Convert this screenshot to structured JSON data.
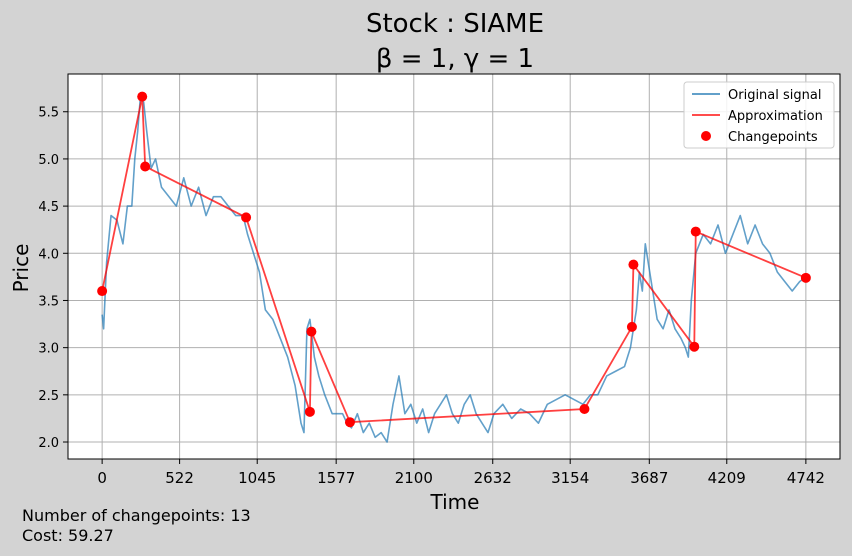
{
  "chart_data": {
    "type": "line",
    "title_line1": "Stock : SIAME",
    "title_line2": "β = 1, γ = 1",
    "xlabel": "Time",
    "ylabel": "Price",
    "xlim": [
      -230,
      4972
    ],
    "ylim": [
      1.82,
      5.9
    ],
    "xticks": [
      0,
      522,
      1045,
      1577,
      2100,
      2632,
      3154,
      3687,
      4209,
      4742
    ],
    "yticks": [
      2.0,
      2.5,
      3.0,
      3.5,
      4.0,
      4.5,
      5.0,
      5.5
    ],
    "ytick_labels": [
      "2.0",
      "2.5",
      "3.0",
      "3.5",
      "4.0",
      "4.5",
      "5.0",
      "5.5"
    ],
    "grid": true,
    "legend_position": "top-right",
    "colors": {
      "signal": "#1f77b4",
      "approximation": "#ff0000",
      "changepoints": "#ff0000"
    },
    "series": [
      {
        "name": "Original signal",
        "x": [
          0,
          10,
          30,
          60,
          100,
          140,
          170,
          200,
          220,
          240,
          260,
          280,
          300,
          330,
          360,
          400,
          450,
          500,
          550,
          600,
          650,
          700,
          750,
          800,
          850,
          900,
          950,
          980,
          1020,
          1060,
          1100,
          1150,
          1200,
          1250,
          1300,
          1340,
          1360,
          1380,
          1400,
          1430,
          1460,
          1500,
          1550,
          1590,
          1620,
          1650,
          1680,
          1720,
          1760,
          1800,
          1840,
          1880,
          1920,
          1960,
          2000,
          2040,
          2080,
          2120,
          2160,
          2200,
          2240,
          2280,
          2320,
          2360,
          2400,
          2440,
          2480,
          2520,
          2560,
          2600,
          2640,
          2700,
          2760,
          2820,
          2880,
          2940,
          3000,
          3060,
          3120,
          3180,
          3240,
          3290,
          3340,
          3400,
          3460,
          3520,
          3560,
          3580,
          3600,
          3620,
          3640,
          3660,
          3700,
          3740,
          3780,
          3820,
          3860,
          3900,
          3930,
          3950,
          3970,
          4000,
          4050,
          4100,
          4150,
          4200,
          4250,
          4300,
          4350,
          4400,
          4450,
          4500,
          4550,
          4600,
          4650,
          4700,
          4742
        ],
        "y": [
          3.35,
          3.2,
          3.9,
          4.4,
          4.35,
          4.1,
          4.5,
          4.5,
          5.0,
          5.3,
          5.7,
          5.6,
          5.3,
          4.9,
          5.0,
          4.7,
          4.6,
          4.5,
          4.8,
          4.5,
          4.7,
          4.4,
          4.6,
          4.6,
          4.5,
          4.4,
          4.4,
          4.2,
          4.0,
          3.8,
          3.4,
          3.3,
          3.1,
          2.9,
          2.6,
          2.2,
          2.1,
          3.2,
          3.3,
          2.9,
          2.7,
          2.5,
          2.3,
          2.3,
          2.3,
          2.2,
          2.15,
          2.3,
          2.1,
          2.2,
          2.05,
          2.1,
          2.0,
          2.4,
          2.7,
          2.3,
          2.4,
          2.2,
          2.35,
          2.1,
          2.3,
          2.4,
          2.5,
          2.3,
          2.2,
          2.4,
          2.5,
          2.3,
          2.2,
          2.1,
          2.3,
          2.4,
          2.25,
          2.35,
          2.3,
          2.2,
          2.4,
          2.45,
          2.5,
          2.45,
          2.4,
          2.5,
          2.5,
          2.7,
          2.75,
          2.8,
          3.0,
          3.2,
          3.4,
          3.8,
          3.6,
          4.1,
          3.7,
          3.3,
          3.2,
          3.4,
          3.2,
          3.1,
          3.0,
          2.9,
          3.5,
          4.0,
          4.2,
          4.1,
          4.3,
          4.0,
          4.2,
          4.4,
          4.1,
          4.3,
          4.1,
          4.0,
          3.8,
          3.7,
          3.6,
          3.7,
          3.75
        ]
      },
      {
        "name": "Approximation",
        "x": [
          0,
          270,
          290,
          970,
          1400,
          1410,
          1670,
          3250,
          3570,
          3580,
          3990,
          4000,
          4742
        ],
        "y": [
          3.6,
          5.66,
          4.92,
          4.38,
          2.32,
          3.17,
          2.21,
          2.35,
          3.22,
          3.88,
          3.01,
          4.23,
          3.74
        ]
      }
    ],
    "changepoints": {
      "name": "Changepoints",
      "x": [
        0,
        270,
        290,
        970,
        1400,
        1410,
        1670,
        3250,
        3570,
        3580,
        3990,
        4000,
        4742
      ],
      "y": [
        3.6,
        5.66,
        4.92,
        4.38,
        2.32,
        3.17,
        2.21,
        2.35,
        3.22,
        3.88,
        3.01,
        4.23,
        3.74
      ]
    }
  },
  "footer": {
    "changepoints_text": "Number of changepoints: 13",
    "cost_text": "Cost: 59.27"
  }
}
